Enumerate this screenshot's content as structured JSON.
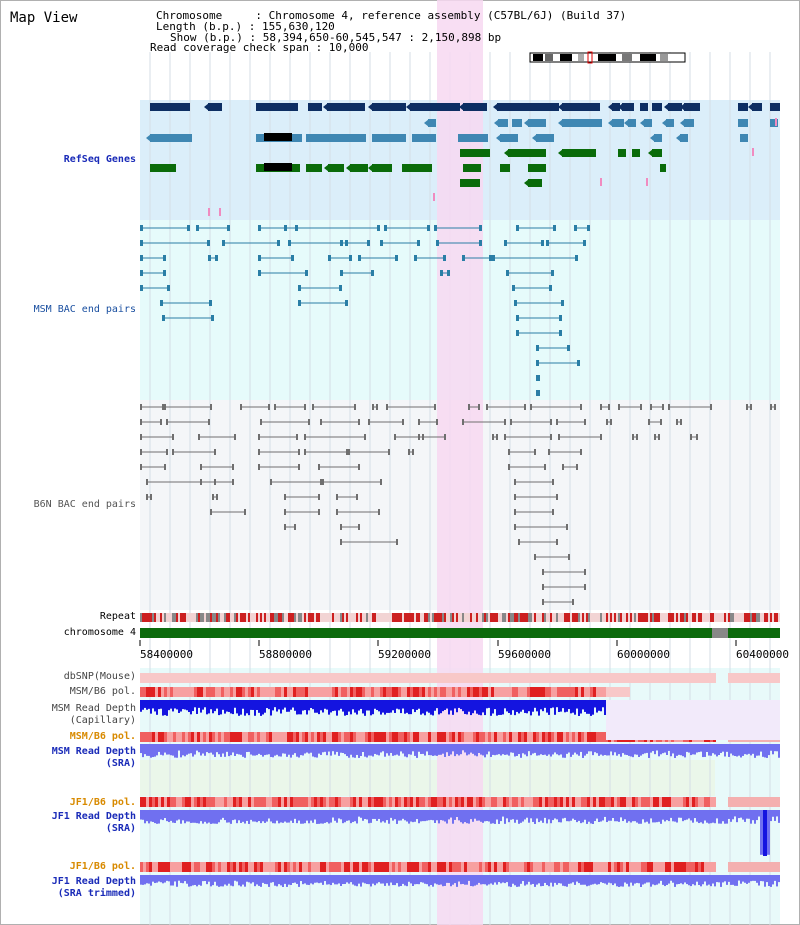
{
  "title": "Map View",
  "info": {
    "chromosome": "Chromosome     : Chromosome 4, reference assembly (C57BL/6J) (Build 37)",
    "length": "Length (b.p.) : 155,630,120",
    "show": "Show (b.p.) : 58,394,650-60,545,547 : 2,150,898 bp",
    "span": "Read coverage check span : 10,000"
  },
  "tracks": {
    "refseq": "RefSeq Genes",
    "msm_bac": "MSM BAC end pairs",
    "b6n_bac": "B6N BAC end pairs",
    "repeat": "Repeat",
    "chromosome": "chromosome 4",
    "dbsnp": "dbSNP(Mouse)",
    "msm_b6_pol": "MSM/B6 pol.",
    "msm_depth_cap": "MSM Read Depth\n(Capillary)",
    "msm_b6_pol2": "MSM/B6 pol.",
    "msm_depth_sra": "MSM Read Depth\n(SRA)",
    "jf1_b6_pol": "JF1/B6 pol.",
    "jf1_depth_sra": "JF1 Read Depth\n(SRA)",
    "jf1_b6_pol2": "JF1/B6 pol.",
    "jf1_depth_trim": "JF1 Read Depth\n(SRA trimmed)"
  },
  "axis": {
    "ticks": [
      "58400000",
      "58800000",
      "59200000",
      "59600000",
      "60000000",
      "60400000"
    ]
  },
  "colors": {
    "refseq_bg": "#dbeefa",
    "msm_bg": "#e6fbfb",
    "b6n_bg": "#f4f6f8",
    "highlight": "#f7d8f1",
    "gene_navy": "#0d2e63",
    "gene_teal": "#3f87b3",
    "gene_green": "#0a6b0a",
    "msm_pair": "#2a7ea6",
    "b6n_pair": "#6f6f6f",
    "repeat_red": "#cc2020",
    "chrom_green": "#0c6a0c",
    "depth_blue": "#1414e0",
    "depth_light": "#7070f0"
  }
}
